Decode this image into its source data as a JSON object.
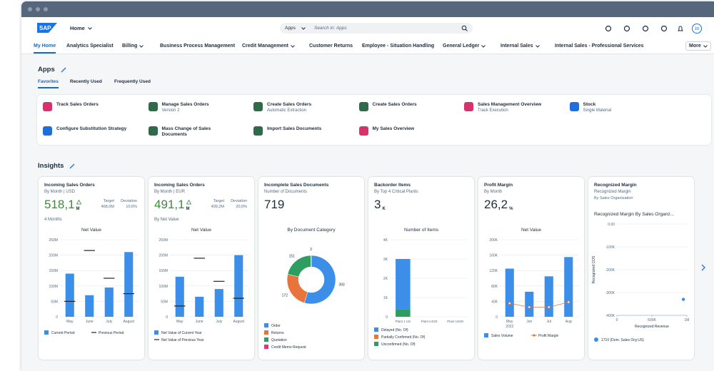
{
  "shell": {
    "logo": "SAP",
    "home": "Home",
    "search_scope": "Apps",
    "search_placeholder": "Search in: Apps",
    "avatar": "JD"
  },
  "nav": {
    "items": [
      {
        "label": "My Home",
        "selected": true
      },
      {
        "label": "Analytics Specialist"
      },
      {
        "label": "Billing",
        "menu": true
      },
      {
        "label": "Business Process Management"
      },
      {
        "label": "Credit Management",
        "menu": true
      },
      {
        "label": "Customer Returns"
      },
      {
        "label": "Employee - Situation Handling"
      },
      {
        "label": "General Ledger",
        "menu": true
      },
      {
        "label": "Internal Sales",
        "menu": true
      },
      {
        "label": "Internal Sales - Professional Services"
      }
    ],
    "more": "More"
  },
  "apps": {
    "title": "Apps",
    "tabs": [
      "Favorites",
      "Recently Used",
      "Frequently Used"
    ],
    "selected_tab": 0,
    "tiles": [
      {
        "title": "Track Sales Orders",
        "color": "#d6336c"
      },
      {
        "title": "Manage Sales Orders",
        "subtitle": "Version 2",
        "color": "#2f6b4b"
      },
      {
        "title": "Create Sales Orders",
        "subtitle": "Automatic Extraction",
        "color": "#2f6b4b"
      },
      {
        "title": "Create Sales Orders",
        "color": "#2f6b4b"
      },
      {
        "title": "Sales Management Overview",
        "subtitle": "Track Execution",
        "color": "#d6336c"
      },
      {
        "title": "Stock",
        "subtitle": "Single Material",
        "color": "#1e6fd9"
      },
      {
        "title": "Configure Substitution Strategy",
        "color": "#1e6fd9"
      },
      {
        "title": "Mass Change of Sales Documents",
        "color": "#2f6b4b"
      },
      {
        "title": "Import Sales Documents",
        "color": "#2f6b4b"
      },
      {
        "title": "My Sales Overview",
        "color": "#d6336c"
      }
    ]
  },
  "insights": {
    "title": "Insights",
    "cards": [
      {
        "title": "Incoming Sales Orders",
        "subtitle": "By Month | USD",
        "kpi": "518,1",
        "kpi_unit": "M",
        "kpi_color": "#3c8a3c",
        "trend": "up",
        "target_label": "Target",
        "target": "468,0M",
        "deviation_label": "Deviation",
        "deviation": "10,6%",
        "footnote": "4 Months",
        "chart": {
          "type": "bar",
          "title": "Net Value",
          "categories": [
            "May",
            "June",
            "July",
            "August"
          ],
          "series": [
            {
              "name": "Current Period",
              "color": "#3b8fe8",
              "style": "bar",
              "values": [
                140,
                70,
                95,
                210
              ]
            },
            {
              "name": "Previous Period",
              "color": "#222222",
              "style": "marker",
              "values": [
                50,
                215,
                125,
                75
              ]
            }
          ],
          "ylim": [
            0,
            250
          ],
          "yticks": [
            0,
            {
              "value": 50,
              "label": "50M"
            },
            {
              "value": 100,
              "label": "100M"
            },
            {
              "value": 150,
              "label": "150M"
            },
            {
              "value": 200,
              "label": "200M"
            },
            {
              "value": 250,
              "label": "250M"
            }
          ],
          "grid": true
        }
      },
      {
        "title": "Incoming Sales Orders",
        "subtitle": "By Month | EUR",
        "kpi": "491,1",
        "kpi_unit": "M",
        "kpi_color": "#3c8a3c",
        "trend": "up",
        "target_label": "Target",
        "target": "409,2M",
        "deviation_label": "Deviation",
        "deviation": "20,0%",
        "footnote": "By Net Value",
        "chart": {
          "type": "bar",
          "title": "Net Value",
          "categories": [
            "May",
            "June",
            "July",
            "August"
          ],
          "series": [
            {
              "name": "Net Value of Current Year",
              "color": "#3b8fe8",
              "style": "bar",
              "values": [
                130,
                65,
                90,
                200
              ]
            },
            {
              "name": "Net Value of Previous Year",
              "color": "#222222",
              "style": "marker",
              "values": [
                35,
                190,
                115,
                60
              ]
            }
          ],
          "ylim": [
            0,
            250
          ],
          "yticks": [
            0,
            {
              "value": 50,
              "label": "50M"
            },
            {
              "value": 100,
              "label": "100M"
            },
            {
              "value": 150,
              "label": "150M"
            },
            {
              "value": 200,
              "label": "200M"
            },
            {
              "value": 250,
              "label": "250M"
            }
          ],
          "grid": true
        }
      },
      {
        "title": "Incomplete Sales Documents",
        "subtitle": "Number of Documents",
        "kpi": "719",
        "chart": {
          "type": "donut",
          "title": "By Document Category",
          "categories": [
            "Order",
            "Returns",
            "Quotation",
            "Credit Memo Request"
          ],
          "values": [
            393,
            172,
            151,
            3
          ],
          "colors": [
            "#3b8fe8",
            "#e8743b",
            "#2d9e5f",
            "#e0357e"
          ]
        }
      },
      {
        "title": "Backorder Items",
        "subtitle": "By Top 4 Critical Plants",
        "kpi": "3",
        "kpi_unit": "K",
        "chart": {
          "type": "stacked_bar",
          "title": "Number of Items",
          "categories": [
            "Plant 1 US",
            "Plant US20",
            "Plant US30"
          ],
          "series": [
            {
              "name": "Delayed (No. Of)",
              "color": "#3b8fe8",
              "values": [
                2600,
                null,
                null
              ]
            },
            {
              "name": "Partially Confirmed (No. Of)",
              "color": "#e8743b",
              "values": [
                0,
                null,
                null
              ]
            },
            {
              "name": "Unconfirmed (No. Of)",
              "color": "#2d9e5f",
              "values": [
                400,
                null,
                null
              ]
            }
          ],
          "ylim": [
            0,
            4000
          ],
          "yticks": [
            0,
            {
              "value": 1000,
              "label": "1K"
            },
            {
              "value": 2000,
              "label": "2K"
            },
            {
              "value": 3000,
              "label": "3K"
            },
            {
              "value": 4000,
              "label": "4K"
            }
          ],
          "grid": true
        }
      },
      {
        "title": "Profit Margin",
        "subtitle": "By Month",
        "kpi": "26,2",
        "kpi_unit": "%",
        "chart": {
          "type": "bar",
          "title": "Net Value",
          "categories": [
            "May",
            "Jun",
            "Jul",
            "Aug"
          ],
          "category_group": "2022",
          "series": [
            {
              "name": "Sales Volume",
              "color": "#3b8fe8",
              "style": "bar",
              "values": [
                125,
                65,
                105,
                155
              ]
            },
            {
              "name": "Profit Margin",
              "color": "#e8743b",
              "style": "line",
              "values": [
                35,
                25,
                25,
                38
              ]
            }
          ],
          "ylim": [
            0,
            200
          ],
          "yticks": [
            0,
            {
              "value": 40,
              "label": "40K"
            },
            {
              "value": 80,
              "label": "80K"
            },
            {
              "value": 120,
              "label": "120K"
            },
            {
              "value": 160,
              "label": "160K"
            },
            {
              "value": 200,
              "label": "200K"
            }
          ],
          "grid": true
        }
      },
      {
        "title": "Recognized Margin",
        "subtitle": "Recognized Margin",
        "subtitle2": "By Sales Organization",
        "chart": {
          "type": "scatter",
          "title": "Recognized Margin By Sales Organz...",
          "xlabel": "Recognized Revenue",
          "ylabel": "Recognized COS",
          "series": [
            {
              "name": "1710 (Dom. Sales Org US)",
              "color": "#3b8fe8",
              "x": [
                950
              ],
              "values": [
                -330
              ]
            }
          ],
          "xlim": [
            0,
            1000
          ],
          "xticks": [
            0,
            {
              "value": 500,
              "label": "500K"
            },
            {
              "value": 1000,
              "label": "1M"
            }
          ],
          "ylim": [
            -400,
            0
          ],
          "yticks": [
            {
              "value": 0,
              "label": "0.00"
            },
            {
              "value": -100,
              "label": "-100K"
            },
            {
              "value": -200,
              "label": "-200K"
            },
            {
              "value": -300,
              "label": "-300K"
            },
            {
              "value": -400,
              "label": "-400K"
            }
          ],
          "grid": true
        }
      }
    ]
  }
}
